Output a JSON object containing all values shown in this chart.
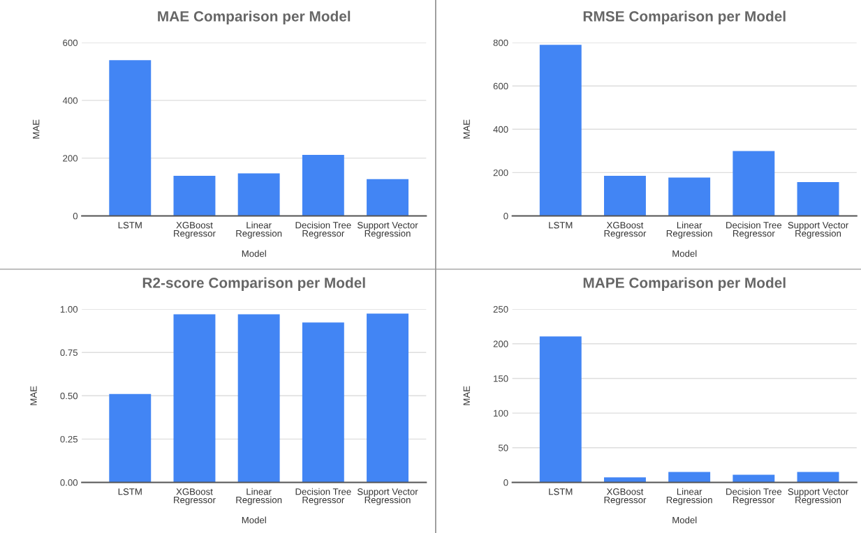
{
  "chart_data": [
    {
      "type": "bar",
      "title": "MAE Comparison per Model",
      "xlabel": "Model",
      "ylabel": "MAE",
      "categories": [
        "LSTM",
        "XGBoost\nRegressor",
        "Linear\nRegression",
        "Decision Tree\nRegressor",
        "Support Vector\nRegression"
      ],
      "values": [
        539,
        139,
        147,
        211,
        127
      ],
      "color": "#4285f4",
      "ylim": [
        0,
        600
      ],
      "yticks": [
        0,
        200,
        400,
        600
      ],
      "grid": "y"
    },
    {
      "type": "bar",
      "title": "RMSE Comparison per Model",
      "xlabel": "Model",
      "ylabel": "MAE",
      "categories": [
        "LSTM",
        "XGBoost\nRegressor",
        "Linear\nRegression",
        "Decision Tree\nRegressor",
        "Support Vector\nRegression"
      ],
      "values": [
        790,
        185,
        177,
        299,
        156
      ],
      "color": "#4285f4",
      "ylim": [
        0,
        800
      ],
      "yticks": [
        0,
        200,
        400,
        600,
        800
      ],
      "grid": "y"
    },
    {
      "type": "bar",
      "title": "R2-score Comparison per Model",
      "xlabel": "Model",
      "ylabel": "MAE",
      "categories": [
        "LSTM",
        "XGBoost\nRegressor",
        "Linear\nRegression",
        "Decision Tree\nRegressor",
        "Support Vector\nRegression"
      ],
      "values": [
        0.51,
        0.97,
        0.97,
        0.923,
        0.974
      ],
      "color": "#4285f4",
      "ylim": [
        0,
        1
      ],
      "yticks": [
        {
          "value": 0,
          "label": "0.00"
        },
        {
          "value": 0.25,
          "label": "0.25"
        },
        {
          "value": 0.5,
          "label": "0.50"
        },
        {
          "value": 0.75,
          "label": "0.75"
        },
        {
          "value": 1,
          "label": "1.00"
        }
      ],
      "grid": "y"
    },
    {
      "type": "bar",
      "title": "MAPE Comparison per Model",
      "xlabel": "Model",
      "ylabel": "MAE",
      "categories": [
        "LSTM",
        "XGBoost\nRegressor",
        "Linear\nRegression",
        "Decision Tree\nRegressor",
        "Support Vector\nRegression"
      ],
      "values": [
        210.5,
        7.2,
        14.9,
        10.9,
        14.9
      ],
      "color": "#4285f4",
      "ylim": [
        0,
        250
      ],
      "yticks": [
        0,
        50,
        100,
        150,
        200,
        250
      ],
      "grid": "y"
    }
  ]
}
